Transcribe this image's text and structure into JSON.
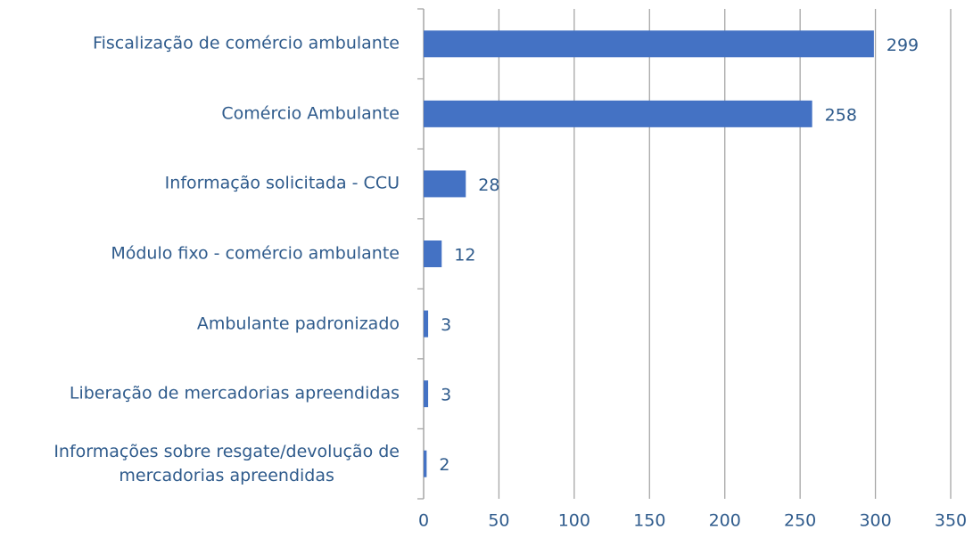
{
  "chart_data": {
    "type": "barh",
    "categories": [
      "Fiscalização de comércio ambulante",
      "Comércio Ambulante",
      "Informação solicitada - CCU",
      "Módulo fixo - comércio ambulante",
      "Ambulante padronizado",
      "Liberação de mercadorias apreendidas",
      "Informações sobre resgate/devolução de\nmercadorias apreendidas"
    ],
    "values": [
      299,
      258,
      28,
      12,
      3,
      3,
      2
    ],
    "color": "#4472c4",
    "xlim": [
      0,
      350
    ],
    "xticks": [
      0,
      50,
      100,
      150,
      200,
      250,
      300,
      350
    ],
    "grid": true
  }
}
